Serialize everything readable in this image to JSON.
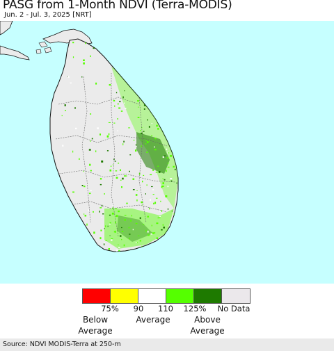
{
  "header": {
    "title": "PASG from 1-Month NDVI (Terra-MODIS)",
    "subtitle": "Jun. 2 - Jul. 3, 2025 [NRT]"
  },
  "map": {
    "region": "Sri Lanka",
    "colors": {
      "water": "#c6ffff",
      "land_no_data": "#ebebeb",
      "boundary": "#555555",
      "coast": "#111111"
    }
  },
  "legend": {
    "classes": [
      {
        "name": "below-75",
        "color": "#ff0000"
      },
      {
        "name": "75-90",
        "color": "#ffff00"
      },
      {
        "name": "90-110",
        "color": "#ffffff"
      },
      {
        "name": "110-125",
        "color": "#55ff00"
      },
      {
        "name": "above-125",
        "color": "#1e7a00"
      },
      {
        "name": "no-data",
        "color": "#ebe8eb"
      }
    ],
    "ticks": {
      "t75": "75%",
      "t90": "90",
      "t110": "110",
      "t125": "125%",
      "nodata": "No Data"
    },
    "captions": {
      "below_1": "Below",
      "below_2": "Average",
      "avg": "Average",
      "above_1": "Above",
      "above_2": "Average"
    }
  },
  "footer": {
    "source": "Source: NDVI MODIS-Terra at 250-m"
  }
}
